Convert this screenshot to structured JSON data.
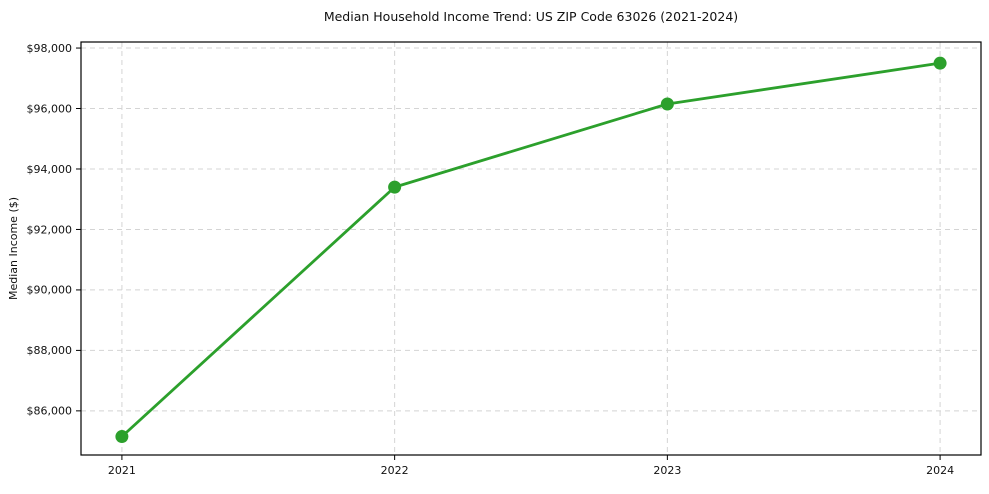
{
  "chart_data": {
    "type": "line",
    "title": "Median Household Income Trend: US ZIP Code 63026 (2021-2024)",
    "xlabel": "",
    "ylabel": "Median Income ($)",
    "x": [
      2021,
      2022,
      2023,
      2024
    ],
    "x_tick_labels": [
      "2021",
      "2022",
      "2023",
      "2024"
    ],
    "values": [
      85150,
      93400,
      96150,
      97500
    ],
    "y_ticks": [
      86000,
      88000,
      90000,
      92000,
      94000,
      96000,
      98000
    ],
    "y_tick_labels": [
      "$86,000",
      "$88,000",
      "$90,000",
      "$92,000",
      "$94,000",
      "$96,000",
      "$98,000"
    ],
    "ylim": [
      84540,
      98200
    ],
    "xlim": [
      -0.15,
      3.15
    ],
    "line_color": "#2ca02c",
    "marker": "circle",
    "grid": {
      "show": true,
      "style": "dashed",
      "color": "#d4d4d4"
    },
    "legend": {
      "show": false
    },
    "background": "#ffffff",
    "spine_color": "#000000"
  }
}
